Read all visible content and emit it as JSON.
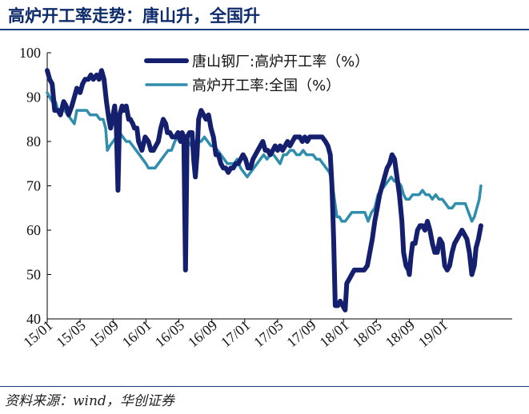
{
  "header": {
    "title": "高炉开工率走势：唐山升，全国升"
  },
  "source": {
    "text": "资料来源：wind，华创证券"
  },
  "chart_data": {
    "type": "line",
    "title": "",
    "xlabel": "",
    "ylabel": "",
    "ylim": [
      40,
      100
    ],
    "yticks": [
      40,
      50,
      60,
      70,
      80,
      90,
      100
    ],
    "xlim": [
      0,
      54
    ],
    "xtick_positions": [
      0,
      4,
      8,
      12,
      16,
      20,
      24,
      28,
      32,
      36,
      40,
      44,
      48
    ],
    "xtick_labels": [
      "15/01",
      "15/05",
      "15/09",
      "16/01",
      "16/05",
      "16/09",
      "17/01",
      "17/05",
      "17/09",
      "18/01",
      "18/05",
      "18/09",
      "19/01"
    ],
    "grid": false,
    "legend": "top-center",
    "series": [
      {
        "name": "唐山钢厂:高炉开工率（%）",
        "color": "#14206e",
        "points": [
          [
            0.0,
            96
          ],
          [
            0.3,
            94
          ],
          [
            0.6,
            93
          ],
          [
            0.9,
            87
          ],
          [
            1.3,
            87
          ],
          [
            1.6,
            86
          ],
          [
            2.0,
            89
          ],
          [
            2.3,
            88
          ],
          [
            2.6,
            86
          ],
          [
            3.0,
            88
          ],
          [
            3.3,
            90
          ],
          [
            3.6,
            92
          ],
          [
            4.0,
            91
          ],
          [
            4.3,
            93
          ],
          [
            4.6,
            94
          ],
          [
            5.0,
            94
          ],
          [
            5.3,
            95
          ],
          [
            5.6,
            94
          ],
          [
            6.0,
            95
          ],
          [
            6.3,
            94
          ],
          [
            6.6,
            96
          ],
          [
            6.9,
            94
          ],
          [
            7.2,
            89
          ],
          [
            7.5,
            85
          ],
          [
            7.7,
            83
          ],
          [
            8.0,
            86
          ],
          [
            8.2,
            88
          ],
          [
            8.4,
            83
          ],
          [
            8.6,
            69
          ],
          [
            8.8,
            86
          ],
          [
            9.1,
            88
          ],
          [
            9.3,
            87
          ],
          [
            9.6,
            88
          ],
          [
            9.9,
            85
          ],
          [
            10.1,
            85
          ],
          [
            10.4,
            84
          ],
          [
            10.6,
            83
          ],
          [
            10.9,
            83
          ],
          [
            11.1,
            80
          ],
          [
            11.5,
            78
          ],
          [
            11.9,
            81
          ],
          [
            12.3,
            80
          ],
          [
            12.6,
            78
          ],
          [
            12.9,
            78
          ],
          [
            13.2,
            79
          ],
          [
            13.5,
            80
          ],
          [
            13.8,
            83
          ],
          [
            14.1,
            85
          ],
          [
            14.4,
            84
          ],
          [
            14.6,
            82
          ],
          [
            14.9,
            82
          ],
          [
            15.2,
            81
          ],
          [
            15.6,
            81
          ],
          [
            15.9,
            82
          ],
          [
            16.2,
            80
          ],
          [
            16.4,
            82
          ],
          [
            16.6,
            81
          ],
          [
            16.8,
            51
          ],
          [
            17.0,
            81
          ],
          [
            17.3,
            82
          ],
          [
            17.6,
            82
          ],
          [
            17.8,
            76
          ],
          [
            18.0,
            72
          ],
          [
            18.2,
            77
          ],
          [
            18.4,
            85
          ],
          [
            18.7,
            87
          ],
          [
            19.0,
            86
          ],
          [
            19.3,
            85
          ],
          [
            19.6,
            86
          ],
          [
            19.9,
            83
          ],
          [
            20.2,
            81
          ],
          [
            20.5,
            77
          ],
          [
            20.8,
            77
          ],
          [
            21.1,
            75
          ],
          [
            21.4,
            74
          ],
          [
            21.7,
            74
          ],
          [
            22.0,
            73
          ],
          [
            22.3,
            74
          ],
          [
            22.6,
            74
          ],
          [
            22.9,
            75
          ],
          [
            23.2,
            75
          ],
          [
            23.5,
            76
          ],
          [
            23.8,
            77
          ],
          [
            24.1,
            76
          ],
          [
            24.4,
            74
          ],
          [
            24.7,
            74
          ],
          [
            25.0,
            76
          ],
          [
            25.3,
            77
          ],
          [
            25.6,
            78
          ],
          [
            25.9,
            79
          ],
          [
            26.2,
            80
          ],
          [
            26.5,
            78
          ],
          [
            26.8,
            78
          ],
          [
            27.1,
            77
          ],
          [
            27.4,
            78
          ],
          [
            27.7,
            79
          ],
          [
            28.0,
            78
          ],
          [
            28.3,
            79
          ],
          [
            28.6,
            78
          ],
          [
            28.9,
            79
          ],
          [
            29.2,
            80
          ],
          [
            29.5,
            79
          ],
          [
            29.8,
            80
          ],
          [
            30.1,
            81
          ],
          [
            30.4,
            81
          ],
          [
            30.7,
            81
          ],
          [
            31.0,
            80
          ],
          [
            31.3,
            81
          ],
          [
            31.6,
            80
          ],
          [
            31.9,
            81
          ],
          [
            32.2,
            81
          ],
          [
            32.6,
            81
          ],
          [
            33.0,
            81
          ],
          [
            33.4,
            81
          ],
          [
            33.8,
            80
          ],
          [
            34.1,
            79
          ],
          [
            34.4,
            77
          ],
          [
            34.6,
            70
          ],
          [
            34.8,
            58
          ],
          [
            35.0,
            43
          ],
          [
            35.3,
            43
          ],
          [
            35.6,
            44
          ],
          [
            35.9,
            43
          ],
          [
            36.2,
            42
          ],
          [
            36.4,
            48
          ],
          [
            36.7,
            49
          ],
          [
            37.0,
            50
          ],
          [
            37.3,
            51
          ],
          [
            37.7,
            51
          ],
          [
            38.1,
            51
          ],
          [
            38.5,
            51
          ],
          [
            38.9,
            52
          ],
          [
            39.2,
            55
          ],
          [
            39.5,
            58
          ],
          [
            39.8,
            62
          ],
          [
            40.1,
            65
          ],
          [
            40.4,
            68
          ],
          [
            40.7,
            70
          ],
          [
            41.0,
            72
          ],
          [
            41.3,
            74
          ],
          [
            41.6,
            75
          ],
          [
            41.9,
            77
          ],
          [
            42.2,
            76
          ],
          [
            42.5,
            72
          ],
          [
            42.8,
            68
          ],
          [
            43.1,
            62
          ],
          [
            43.3,
            55
          ],
          [
            43.6,
            52
          ],
          [
            43.9,
            51
          ],
          [
            44.0,
            50
          ],
          [
            44.2,
            54
          ],
          [
            44.4,
            57
          ],
          [
            44.7,
            57
          ],
          [
            45.0,
            60
          ],
          [
            45.3,
            61
          ],
          [
            45.6,
            61
          ],
          [
            45.9,
            60
          ],
          [
            46.2,
            62
          ],
          [
            46.5,
            60
          ],
          [
            46.8,
            57
          ],
          [
            47.1,
            55
          ],
          [
            47.4,
            55
          ],
          [
            47.7,
            58
          ],
          [
            48.0,
            57
          ],
          [
            48.3,
            52
          ],
          [
            48.6,
            51
          ],
          [
            48.9,
            52
          ],
          [
            49.2,
            55
          ],
          [
            49.5,
            57
          ],
          [
            49.8,
            58
          ],
          [
            50.1,
            59
          ],
          [
            50.4,
            60
          ],
          [
            50.7,
            59
          ],
          [
            51.0,
            58
          ],
          [
            51.3,
            55
          ],
          [
            51.6,
            50
          ],
          [
            51.9,
            52
          ],
          [
            52.1,
            56
          ],
          [
            52.4,
            58
          ],
          [
            52.7,
            61
          ]
        ]
      },
      {
        "name": "高炉开工率:全国（%）",
        "color": "#2f8dad",
        "points": [
          [
            0.0,
            91
          ],
          [
            0.3,
            90
          ],
          [
            0.6,
            89
          ],
          [
            1.0,
            89
          ],
          [
            1.3,
            87
          ],
          [
            1.7,
            87
          ],
          [
            2.1,
            87
          ],
          [
            2.5,
            86
          ],
          [
            2.9,
            85
          ],
          [
            3.3,
            84
          ],
          [
            3.6,
            87
          ],
          [
            4.0,
            87
          ],
          [
            4.4,
            87
          ],
          [
            4.8,
            87
          ],
          [
            5.2,
            86
          ],
          [
            5.6,
            86
          ],
          [
            6.0,
            86
          ],
          [
            6.4,
            85
          ],
          [
            6.8,
            85
          ],
          [
            7.1,
            83
          ],
          [
            7.3,
            78
          ],
          [
            7.6,
            79
          ],
          [
            8.0,
            80
          ],
          [
            8.4,
            81
          ],
          [
            8.8,
            82
          ],
          [
            9.2,
            81
          ],
          [
            9.6,
            80
          ],
          [
            10.0,
            80
          ],
          [
            10.4,
            79
          ],
          [
            10.8,
            78
          ],
          [
            11.2,
            77
          ],
          [
            11.6,
            76
          ],
          [
            12.0,
            75
          ],
          [
            12.3,
            74
          ],
          [
            12.7,
            74
          ],
          [
            13.1,
            74
          ],
          [
            13.5,
            75
          ],
          [
            13.9,
            76
          ],
          [
            14.3,
            77
          ],
          [
            14.7,
            78
          ],
          [
            15.1,
            78
          ],
          [
            15.5,
            80
          ],
          [
            15.9,
            81
          ],
          [
            16.3,
            81
          ],
          [
            16.7,
            81
          ],
          [
            17.1,
            80
          ],
          [
            17.5,
            79
          ],
          [
            17.9,
            80
          ],
          [
            18.3,
            80
          ],
          [
            18.7,
            80
          ],
          [
            19.1,
            81
          ],
          [
            19.5,
            80
          ],
          [
            19.9,
            79
          ],
          [
            20.3,
            79
          ],
          [
            20.7,
            78
          ],
          [
            21.1,
            77
          ],
          [
            21.5,
            76
          ],
          [
            21.9,
            75
          ],
          [
            22.3,
            75
          ],
          [
            22.7,
            75
          ],
          [
            23.1,
            76
          ],
          [
            23.5,
            74
          ],
          [
            23.9,
            73
          ],
          [
            24.3,
            72
          ],
          [
            24.7,
            73
          ],
          [
            25.1,
            74
          ],
          [
            25.5,
            75
          ],
          [
            25.9,
            76
          ],
          [
            26.3,
            77
          ],
          [
            26.7,
            76
          ],
          [
            27.1,
            77
          ],
          [
            27.5,
            77
          ],
          [
            27.9,
            76
          ],
          [
            28.3,
            75
          ],
          [
            28.7,
            77
          ],
          [
            29.1,
            77
          ],
          [
            29.5,
            78
          ],
          [
            29.9,
            78
          ],
          [
            30.3,
            77
          ],
          [
            30.7,
            77
          ],
          [
            31.1,
            78
          ],
          [
            31.5,
            77
          ],
          [
            31.9,
            77
          ],
          [
            32.3,
            77
          ],
          [
            32.7,
            76
          ],
          [
            33.1,
            76
          ],
          [
            33.5,
            75
          ],
          [
            33.9,
            74
          ],
          [
            34.3,
            73
          ],
          [
            34.6,
            71
          ],
          [
            34.9,
            67
          ],
          [
            35.2,
            63
          ],
          [
            35.5,
            63
          ],
          [
            35.8,
            62
          ],
          [
            36.2,
            62
          ],
          [
            36.6,
            63
          ],
          [
            37.0,
            64
          ],
          [
            37.4,
            64
          ],
          [
            37.8,
            64
          ],
          [
            38.2,
            64
          ],
          [
            38.6,
            64
          ],
          [
            39.0,
            62
          ],
          [
            39.4,
            64
          ],
          [
            39.8,
            65
          ],
          [
            40.2,
            68
          ],
          [
            40.6,
            69
          ],
          [
            41.0,
            70
          ],
          [
            41.4,
            71
          ],
          [
            41.8,
            72
          ],
          [
            42.2,
            71
          ],
          [
            42.6,
            71
          ],
          [
            43.0,
            70
          ],
          [
            43.3,
            68
          ],
          [
            43.6,
            67
          ],
          [
            44.0,
            67
          ],
          [
            44.4,
            68
          ],
          [
            44.8,
            68
          ],
          [
            45.2,
            68
          ],
          [
            45.6,
            69
          ],
          [
            46.0,
            68
          ],
          [
            46.4,
            68
          ],
          [
            46.8,
            67
          ],
          [
            47.2,
            68
          ],
          [
            47.6,
            67
          ],
          [
            48.0,
            67
          ],
          [
            48.4,
            66
          ],
          [
            48.8,
            65
          ],
          [
            49.2,
            65
          ],
          [
            49.6,
            66
          ],
          [
            50.0,
            66
          ],
          [
            50.4,
            66
          ],
          [
            50.8,
            66
          ],
          [
            51.2,
            64
          ],
          [
            51.6,
            62
          ],
          [
            51.9,
            63
          ],
          [
            52.2,
            65
          ],
          [
            52.5,
            67
          ],
          [
            52.7,
            70
          ]
        ]
      }
    ]
  }
}
